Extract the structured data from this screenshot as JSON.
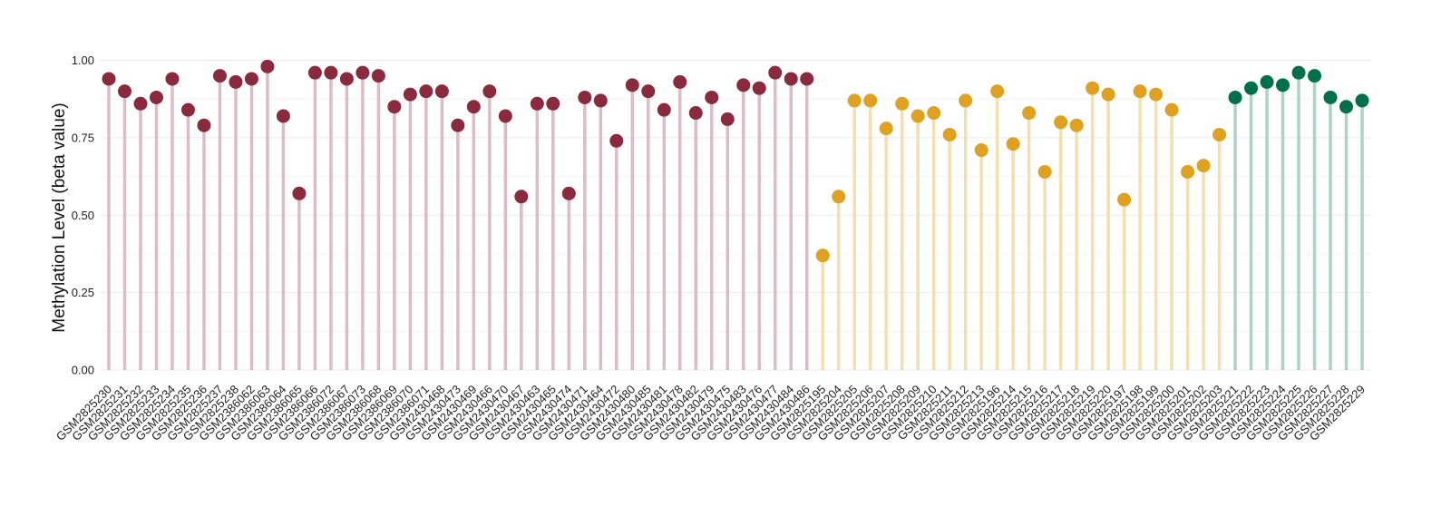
{
  "chart_data": {
    "type": "lollipop",
    "title": "",
    "xlabel": "",
    "ylabel": "Methylation Level (beta value)",
    "ylim": [
      0,
      1
    ],
    "yticks": [
      "0.00",
      "0.25",
      "0.50",
      "0.75",
      "1.00"
    ],
    "grid": true,
    "legend": "none",
    "groups": [
      {
        "color": "#8b2a3e",
        "stem_color": "#dcbcc5",
        "categories": [
          "GSM2825230",
          "GSM2825231",
          "GSM2825232",
          "GSM2825233",
          "GSM2825234",
          "GSM2825235",
          "GSM2825236",
          "GSM2825237",
          "GSM2825238",
          "GSM2386062",
          "GSM2386063",
          "GSM2386064",
          "GSM2386065",
          "GSM2386066",
          "GSM2386072",
          "GSM2386067",
          "GSM2386073",
          "GSM2386068",
          "GSM2386069",
          "GSM2386070",
          "GSM2386071",
          "GSM2430468",
          "GSM2430473",
          "GSM2430469",
          "GSM2430466",
          "GSM2430470",
          "GSM2430467",
          "GSM2430463",
          "GSM2430465",
          "GSM2430474",
          "GSM2430471",
          "GSM2430464",
          "GSM2430472",
          "GSM2430480",
          "GSM2430485",
          "GSM2430481",
          "GSM2430478",
          "GSM2430482",
          "GSM2430479",
          "GSM2430475",
          "GSM2430483",
          "GSM2430476",
          "GSM2430477",
          "GSM2430484",
          "GSM2430486"
        ],
        "values": [
          0.94,
          0.9,
          0.86,
          0.88,
          0.94,
          0.84,
          0.79,
          0.95,
          0.93,
          0.94,
          0.98,
          0.82,
          0.57,
          0.96,
          0.96,
          0.94,
          0.96,
          0.95,
          0.85,
          0.89,
          0.9,
          0.9,
          0.79,
          0.85,
          0.9,
          0.82,
          0.56,
          0.86,
          0.86,
          0.57,
          0.88,
          0.87,
          0.74,
          0.92,
          0.9,
          0.84,
          0.93,
          0.83,
          0.88,
          0.81,
          0.92,
          0.91,
          0.96,
          0.94,
          0.94
        ]
      },
      {
        "color": "#e0a020",
        "stem_color": "#f3dfb0",
        "categories": [
          "GSM2825195",
          "GSM2825204",
          "GSM2825205",
          "GSM2825206",
          "GSM2825207",
          "GSM2825208",
          "GSM2825209",
          "GSM2825210",
          "GSM2825211",
          "GSM2825212",
          "GSM2825213",
          "GSM2825196",
          "GSM2825214",
          "GSM2825215",
          "GSM2825216",
          "GSM2825217",
          "GSM2825218",
          "GSM2825219",
          "GSM2825220",
          "GSM2825197",
          "GSM2825198",
          "GSM2825199",
          "GSM2825200",
          "GSM2825201",
          "GSM2825202",
          "GSM2825203"
        ],
        "values": [
          0.37,
          0.56,
          0.87,
          0.87,
          0.78,
          0.86,
          0.82,
          0.83,
          0.76,
          0.87,
          0.71,
          0.9,
          0.73,
          0.83,
          0.64,
          0.8,
          0.79,
          0.91,
          0.89,
          0.55,
          0.9,
          0.89,
          0.84,
          0.64,
          0.66,
          0.76
        ]
      },
      {
        "color": "#00704a",
        "stem_color": "#aed3c5",
        "categories": [
          "GSM2825221",
          "GSM2825222",
          "GSM2825223",
          "GSM2825224",
          "GSM2825225",
          "GSM2825226",
          "GSM2825227",
          "GSM2825228",
          "GSM2825229"
        ],
        "values": [
          0.88,
          0.91,
          0.93,
          0.92,
          0.96,
          0.95,
          0.88,
          0.85,
          0.87
        ]
      }
    ]
  }
}
